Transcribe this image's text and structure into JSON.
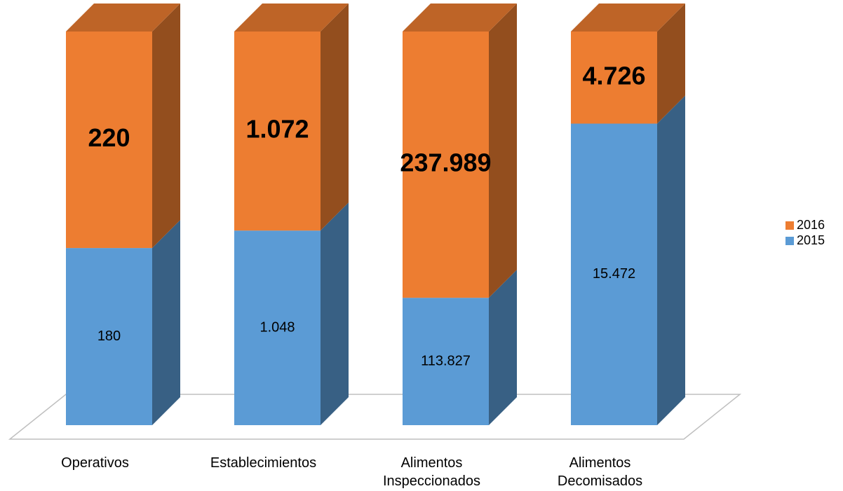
{
  "chart_data": {
    "type": "bar",
    "stacking": "percent",
    "categories": [
      "Operativos",
      "Establecimientos",
      "Alimentos Inspeccionados",
      "Alimentos Decomisados"
    ],
    "series": [
      {
        "name": "2015",
        "color": "#5b9bd5",
        "values": [
          180,
          1048,
          113827,
          15472
        ],
        "value_labels": [
          "180",
          "1.048",
          "113.827",
          "15.472"
        ]
      },
      {
        "name": "2016",
        "color": "#ed7d31",
        "values": [
          220,
          1072,
          237989,
          4726
        ],
        "value_labels": [
          "220",
          "1.072",
          "237.989",
          "4.726"
        ]
      }
    ],
    "legend": "right"
  }
}
